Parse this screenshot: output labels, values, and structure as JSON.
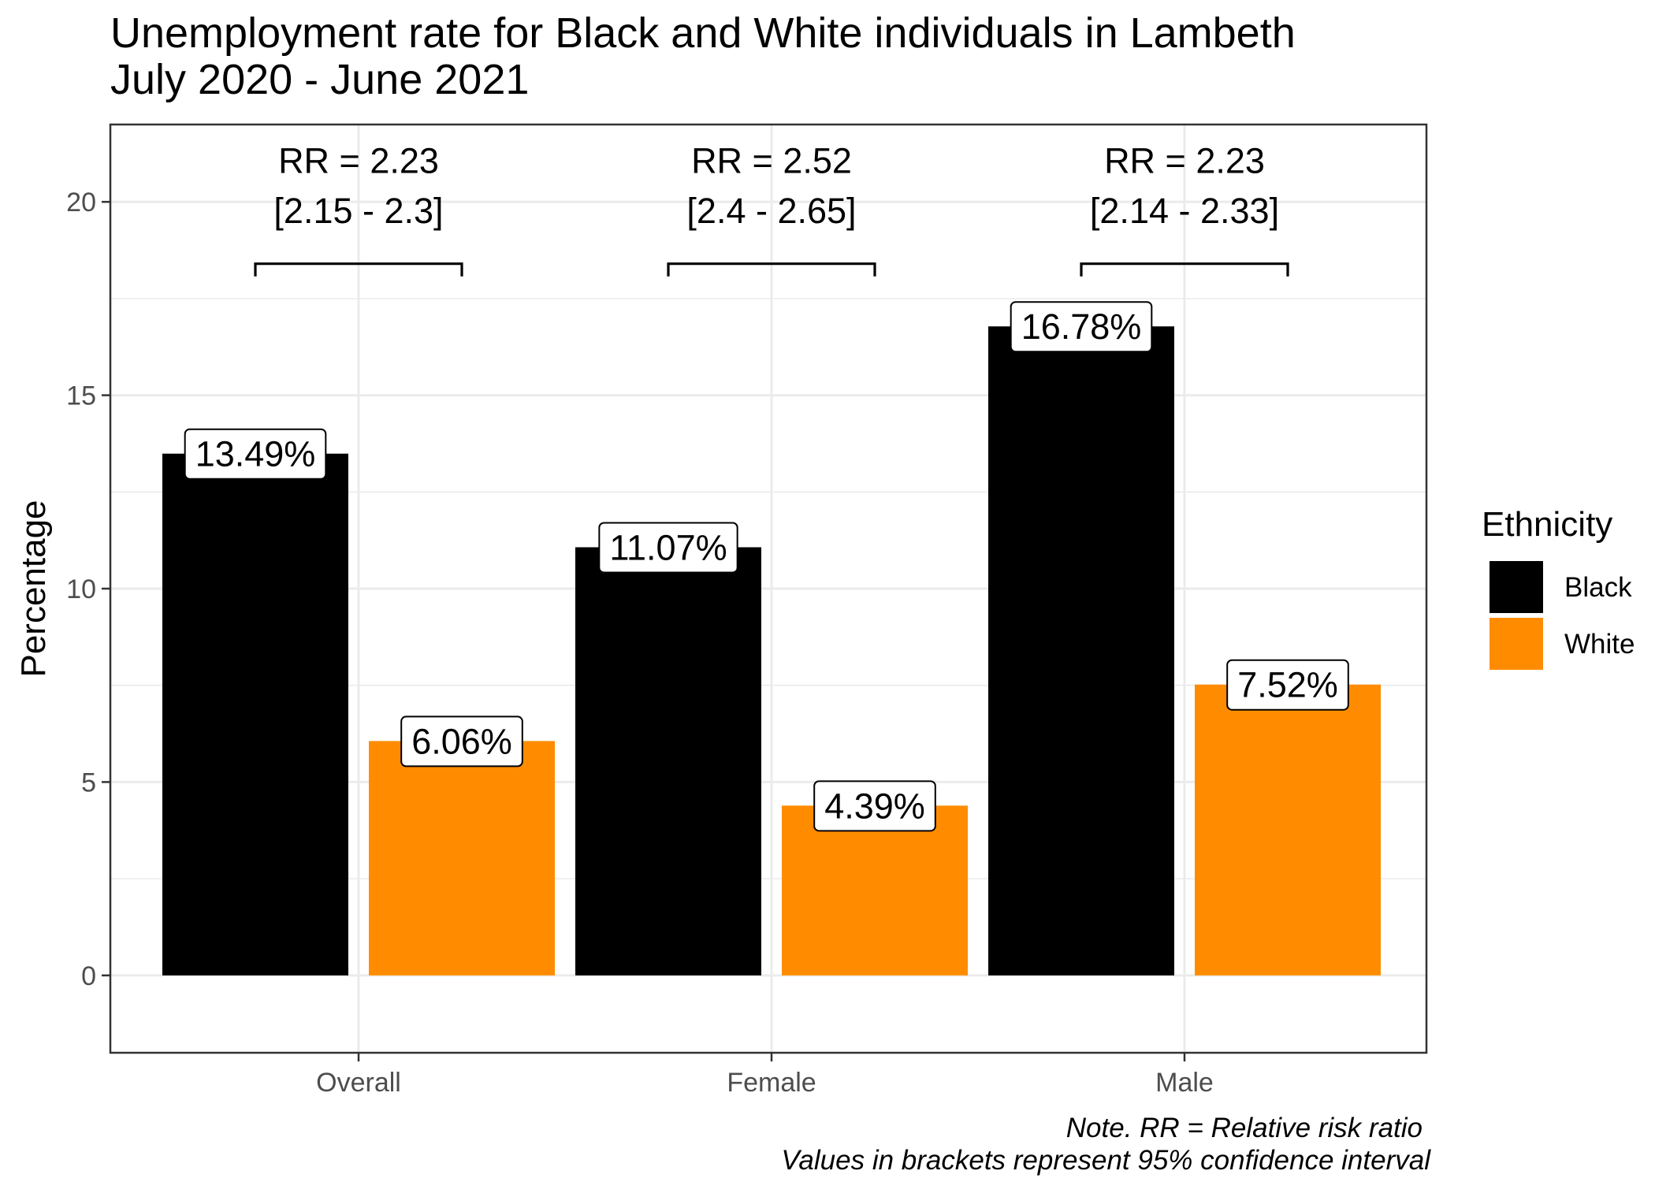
{
  "chart_data": {
    "type": "bar",
    "title": [
      "Unemployment rate for Black and White individuals in Lambeth",
      "July 2020 - June 2021"
    ],
    "xlabel": "",
    "ylabel": "Percentage",
    "ylim": [
      -2,
      22
    ],
    "yticks": [
      0,
      5,
      10,
      15,
      20
    ],
    "grid": true,
    "categories": [
      "Overall",
      "Female",
      "Male"
    ],
    "series": [
      {
        "name": "Black",
        "color": "#000000",
        "values": [
          13.49,
          11.07,
          16.78
        ]
      },
      {
        "name": "White",
        "color": "#ff8c00",
        "values": [
          6.06,
          4.39,
          7.52
        ]
      }
    ],
    "data_labels": [
      [
        "13.49%",
        "11.07%",
        "16.78%"
      ],
      [
        "6.06%",
        "4.39%",
        "7.52%"
      ]
    ],
    "annotations": [
      {
        "category": "Overall",
        "rr": "RR = 2.23",
        "ci": "[2.15 - 2.3]"
      },
      {
        "category": "Female",
        "rr": "RR = 2.52",
        "ci": "[2.4 - 2.65]"
      },
      {
        "category": "Male",
        "rr": "RR = 2.23",
        "ci": "[2.14 - 2.33]"
      }
    ],
    "bracket_level": 18.4,
    "legend": {
      "title": "Ethnicity",
      "position": "right"
    },
    "caption": [
      "Note. RR = Relative risk ratio",
      "Values in brackets represent 95% confidence interval"
    ]
  }
}
